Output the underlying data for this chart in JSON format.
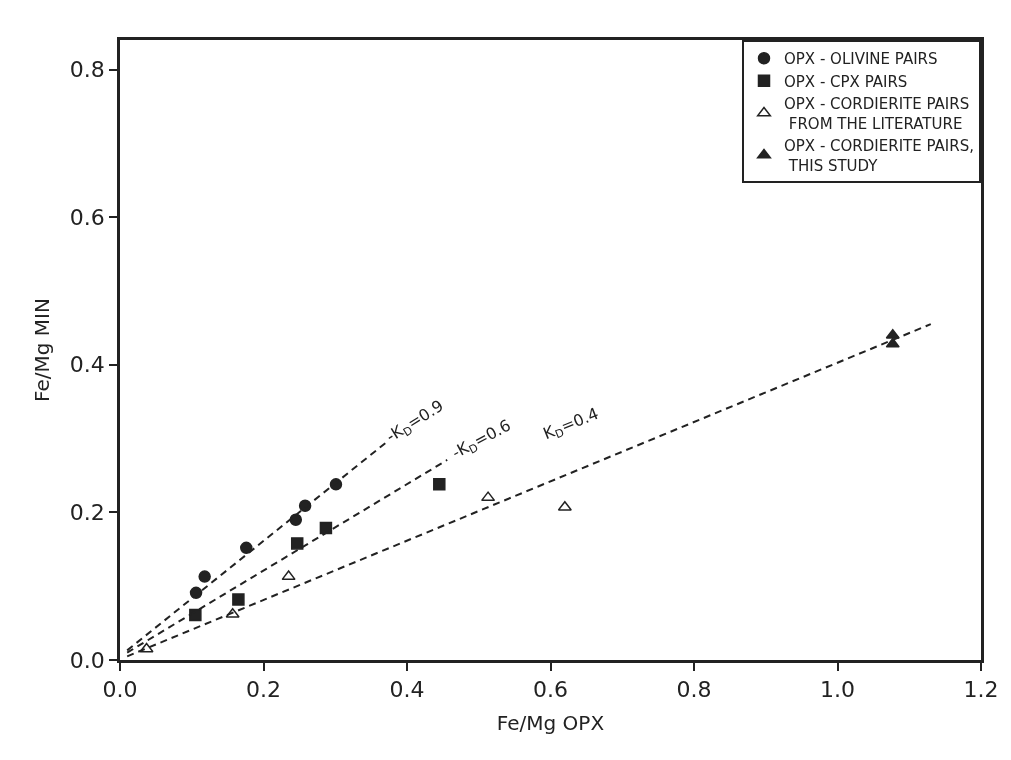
{
  "chart_data": {
    "type": "scatter",
    "xlabel": "Fe/Mg OPX",
    "ylabel": "Fe/Mg MIN",
    "xlim": [
      0,
      1.2
    ],
    "ylim": [
      0,
      0.84
    ],
    "xticks": [
      {
        "value": 0,
        "label": "0.0"
      },
      0.2,
      0.4,
      0.6,
      0.8,
      {
        "value": 1,
        "label": "1.0"
      },
      1.2
    ],
    "yticks": [
      {
        "value": 0,
        "label": "0.0"
      },
      0.2,
      0.4,
      0.6,
      0.8
    ],
    "legend": "top right",
    "series": [
      {
        "name": "OPX - OLIVINE PAIRS",
        "marker": "circle",
        "color": "#222222",
        "x": [
          0.106,
          0.118,
          0.176,
          0.245,
          0.258,
          0.301
        ],
        "values": [
          0.091,
          0.113,
          0.152,
          0.19,
          0.209,
          0.238
        ]
      },
      {
        "name": "OPX - CPX PAIRS",
        "marker": "square",
        "color": "#222222",
        "x": [
          0.105,
          0.165,
          0.247,
          0.287,
          0.445
        ],
        "values": [
          0.061,
          0.082,
          0.158,
          0.179,
          0.238
        ]
      },
      {
        "name": "OPX - CORDIERITE PAIRS\n FROM THE LITERATURE",
        "marker": "triangle-open",
        "color": "#222222",
        "x": [
          0.037,
          0.157,
          0.235,
          0.513,
          0.62
        ],
        "values": [
          0.015,
          0.062,
          0.113,
          0.22,
          0.207
        ]
      },
      {
        "name": "OPX - CORDIERITE PAIRS,\n THIS STUDY",
        "marker": "triangle",
        "color": "#222222",
        "x": [
          1.077,
          1.077
        ],
        "values": [
          0.44,
          0.428
        ]
      },
      {
        "type": "line",
        "line_style": "dashed",
        "color": "#222222",
        "x": [
          0.01,
          0.37
        ],
        "values": [
          0.013,
          0.294
        ]
      },
      {
        "type": "line",
        "line_style": "dashed",
        "color": "#222222",
        "x": [
          0.01,
          0.456
        ],
        "values": [
          0.01,
          0.271
        ]
      },
      {
        "type": "line",
        "line_style": "dashed",
        "color": "#222222",
        "x": [
          0.01,
          1.13
        ],
        "values": [
          0.005,
          0.455
        ]
      }
    ],
    "annotations": [
      "-K$_{D}$=0.9",
      "-K$_{D}$=0.6",
      "K$_{D}$=0.4"
    ]
  }
}
